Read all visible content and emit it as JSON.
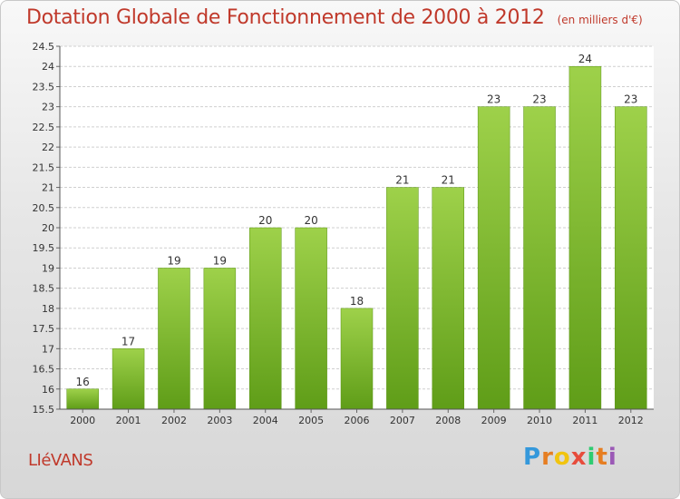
{
  "header": {
    "title": "Dotation Globale de Fonctionnement de 2000 à 2012",
    "subtitle": "(en milliers d'€)"
  },
  "footer": {
    "place": "LIéVANS",
    "logo_letters": [
      "P",
      "r",
      "o",
      "x",
      "i",
      "t",
      "i"
    ],
    "logo_colors": [
      "#3498db",
      "#e67e22",
      "#f1c40f",
      "#e74c3c",
      "#2ecc71",
      "#e67e22",
      "#9b59b6"
    ]
  },
  "chart_data": {
    "type": "bar",
    "title": "Dotation Globale de Fonctionnement de 2000 à 2012",
    "subtitle": "(en milliers d'€)",
    "categories": [
      "2000",
      "2001",
      "2002",
      "2003",
      "2004",
      "2005",
      "2006",
      "2007",
      "2008",
      "2009",
      "2010",
      "2011",
      "2012"
    ],
    "values": [
      16,
      17,
      19,
      19,
      20,
      20,
      18,
      21,
      21,
      23,
      23,
      24,
      23
    ],
    "value_labels": [
      "16",
      "17",
      "19",
      "19",
      "20",
      "20",
      "18",
      "21",
      "21",
      "23",
      "23",
      "24",
      "23"
    ],
    "ylim": [
      15.5,
      24.5
    ],
    "yticks": [
      "15.5",
      "16",
      "16.5",
      "17",
      "17.5",
      "18",
      "18.5",
      "19",
      "19.5",
      "20",
      "20.5",
      "21",
      "21.5",
      "22",
      "22.5",
      "23",
      "23.5",
      "24",
      "24.5"
    ],
    "grid": true,
    "bar_color": "#7cbf2e",
    "xlabel": "",
    "ylabel": ""
  }
}
